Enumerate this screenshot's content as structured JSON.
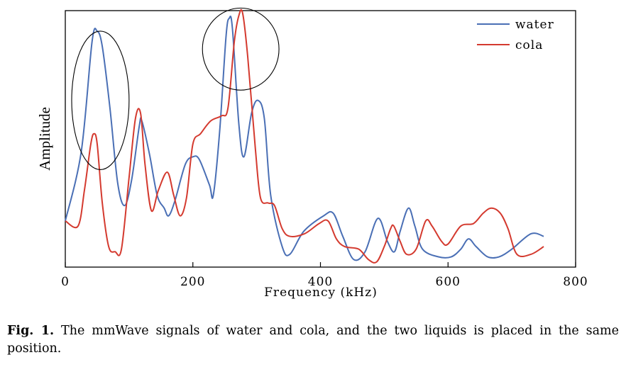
{
  "chart_data": {
    "type": "line",
    "title": "",
    "xlabel": "Frequency (kHz)",
    "ylabel": "Amplitude",
    "xlim": [
      0,
      800
    ],
    "ylim": [
      0,
      1
    ],
    "xticks": [
      0,
      200,
      400,
      600,
      800
    ],
    "grid": false,
    "legend_position": "top-right",
    "series": [
      {
        "name": "water",
        "color": "#4a6fb5",
        "points": [
          [
            0,
            0.18
          ],
          [
            25,
            0.45
          ],
          [
            42,
            0.88
          ],
          [
            50,
            0.92
          ],
          [
            58,
            0.86
          ],
          [
            70,
            0.62
          ],
          [
            82,
            0.33
          ],
          [
            93,
            0.24
          ],
          [
            104,
            0.34
          ],
          [
            116,
            0.55
          ],
          [
            120,
            0.57
          ],
          [
            132,
            0.44
          ],
          [
            144,
            0.28
          ],
          [
            155,
            0.23
          ],
          [
            162,
            0.2
          ],
          [
            172,
            0.26
          ],
          [
            188,
            0.4
          ],
          [
            200,
            0.43
          ],
          [
            210,
            0.42
          ],
          [
            226,
            0.32
          ],
          [
            232,
            0.28
          ],
          [
            242,
            0.53
          ],
          [
            252,
            0.9
          ],
          [
            257,
            0.97
          ],
          [
            262,
            0.93
          ],
          [
            272,
            0.56
          ],
          [
            280,
            0.43
          ],
          [
            292,
            0.6
          ],
          [
            302,
            0.65
          ],
          [
            312,
            0.58
          ],
          [
            322,
            0.28
          ],
          [
            340,
            0.08
          ],
          [
            352,
            0.05
          ],
          [
            374,
            0.14
          ],
          [
            405,
            0.2
          ],
          [
            420,
            0.21
          ],
          [
            435,
            0.12
          ],
          [
            452,
            0.03
          ],
          [
            470,
            0.06
          ],
          [
            490,
            0.19
          ],
          [
            505,
            0.1
          ],
          [
            516,
            0.06
          ],
          [
            525,
            0.14
          ],
          [
            538,
            0.23
          ],
          [
            548,
            0.16
          ],
          [
            560,
            0.07
          ],
          [
            585,
            0.04
          ],
          [
            605,
            0.04
          ],
          [
            620,
            0.07
          ],
          [
            632,
            0.11
          ],
          [
            644,
            0.08
          ],
          [
            662,
            0.04
          ],
          [
            680,
            0.04
          ],
          [
            700,
            0.07
          ],
          [
            730,
            0.13
          ],
          [
            750,
            0.12
          ]
        ]
      },
      {
        "name": "cola",
        "color": "#d43a2f",
        "points": [
          [
            0,
            0.18
          ],
          [
            20,
            0.16
          ],
          [
            30,
            0.3
          ],
          [
            40,
            0.48
          ],
          [
            45,
            0.52
          ],
          [
            50,
            0.48
          ],
          [
            58,
            0.25
          ],
          [
            68,
            0.08
          ],
          [
            78,
            0.06
          ],
          [
            88,
            0.07
          ],
          [
            100,
            0.35
          ],
          [
            110,
            0.58
          ],
          [
            118,
            0.6
          ],
          [
            125,
            0.4
          ],
          [
            135,
            0.22
          ],
          [
            146,
            0.3
          ],
          [
            160,
            0.37
          ],
          [
            170,
            0.28
          ],
          [
            180,
            0.2
          ],
          [
            190,
            0.27
          ],
          [
            200,
            0.48
          ],
          [
            212,
            0.52
          ],
          [
            228,
            0.57
          ],
          [
            245,
            0.59
          ],
          [
            255,
            0.62
          ],
          [
            265,
            0.88
          ],
          [
            272,
            0.98
          ],
          [
            278,
            0.99
          ],
          [
            286,
            0.82
          ],
          [
            298,
            0.46
          ],
          [
            306,
            0.27
          ],
          [
            318,
            0.25
          ],
          [
            328,
            0.24
          ],
          [
            340,
            0.15
          ],
          [
            352,
            0.12
          ],
          [
            375,
            0.13
          ],
          [
            398,
            0.17
          ],
          [
            412,
            0.18
          ],
          [
            425,
            0.11
          ],
          [
            438,
            0.08
          ],
          [
            460,
            0.07
          ],
          [
            475,
            0.03
          ],
          [
            488,
            0.02
          ],
          [
            500,
            0.08
          ],
          [
            510,
            0.15
          ],
          [
            515,
            0.16
          ],
          [
            525,
            0.1
          ],
          [
            535,
            0.05
          ],
          [
            550,
            0.07
          ],
          [
            565,
            0.18
          ],
          [
            575,
            0.16
          ],
          [
            590,
            0.1
          ],
          [
            600,
            0.09
          ],
          [
            620,
            0.16
          ],
          [
            640,
            0.17
          ],
          [
            655,
            0.21
          ],
          [
            668,
            0.23
          ],
          [
            682,
            0.21
          ],
          [
            694,
            0.15
          ],
          [
            708,
            0.05
          ],
          [
            730,
            0.05
          ],
          [
            750,
            0.08
          ]
        ]
      }
    ],
    "annotations": [
      {
        "shape": "ellipse",
        "cx": 55,
        "cy": 0.65,
        "rx": 45,
        "ry": 0.27
      },
      {
        "shape": "ellipse",
        "cx": 275,
        "cy": 0.85,
        "rx": 60,
        "ry": 0.16
      }
    ]
  },
  "caption": {
    "label": "Fig. 1.",
    "text": "The mmWave signals of water and cola, and the two liquids is placed in the same position."
  }
}
